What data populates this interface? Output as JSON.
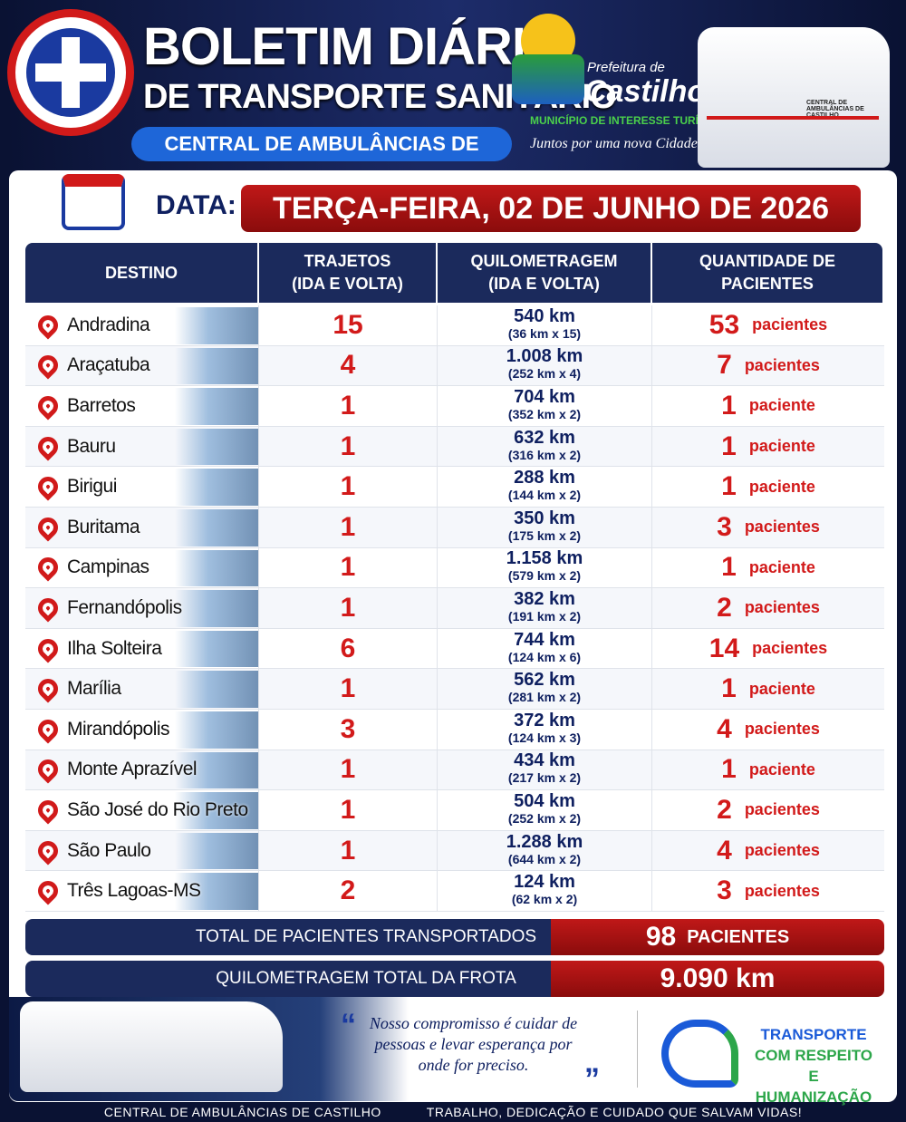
{
  "header": {
    "title": "BOLETIM DIÁRIO",
    "subtitle": "DE TRANSPORTE SANITÁRIO",
    "badge": "CENTRAL DE AMBULÂNCIAS DE CASTILHO"
  },
  "logo": {
    "prefix": "Prefeitura de",
    "name": "Castilho",
    "motto": "MUNICÍPIO DE INTERESSE TURÍSTICO",
    "slogan": "Juntos por uma nova Cidade."
  },
  "van_label": "CENTRAL DE AMBULÂNCIAS DE CASTILHO",
  "date": {
    "label": "DATA:",
    "value": "TERÇA-FEIRA, 02 DE JUNHO DE 2026"
  },
  "table": {
    "headers": [
      [
        "DESTINO"
      ],
      [
        "TRAJETOS",
        "(IDA E VOLTA)"
      ],
      [
        "QUILOMETRAGEM",
        "(IDA E VOLTA)"
      ],
      [
        "QUANTIDADE DE",
        "PACIENTES"
      ]
    ],
    "rows": [
      [
        "Andradina",
        15,
        "540 km",
        "(36 km x 15)",
        53,
        "pacientes"
      ],
      [
        "Araçatuba",
        4,
        "1.008 km",
        "(252 km x 4)",
        7,
        "pacientes"
      ],
      [
        "Barretos",
        1,
        "704 km",
        "(352 km x 2)",
        1,
        "paciente"
      ],
      [
        "Bauru",
        1,
        "632 km",
        "(316 km x 2)",
        1,
        "paciente"
      ],
      [
        "Birigui",
        1,
        "288 km",
        "(144 km x 2)",
        1,
        "paciente"
      ],
      [
        "Buritama",
        1,
        "350 km",
        "(175 km x 2)",
        3,
        "pacientes"
      ],
      [
        "Campinas",
        1,
        "1.158 km",
        "(579 km x 2)",
        1,
        "paciente"
      ],
      [
        "Fernandópolis",
        1,
        "382 km",
        "(191 km x 2)",
        2,
        "pacientes"
      ],
      [
        "Ilha Solteira",
        6,
        "744 km",
        "(124 km x 6)",
        14,
        "pacientes"
      ],
      [
        "Marília",
        1,
        "562 km",
        "(281 km x 2)",
        1,
        "paciente"
      ],
      [
        "Mirandópolis",
        3,
        "372 km",
        "(124 km x 3)",
        4,
        "pacientes"
      ],
      [
        "Monte Aprazível",
        1,
        "434 km",
        "(217 km x 2)",
        1,
        "paciente"
      ],
      [
        "São José do Rio Preto",
        1,
        "504 km",
        "(252 km x 2)",
        2,
        "pacientes"
      ],
      [
        "São Paulo",
        1,
        "1.288 km",
        "(644 km x 2)",
        4,
        "pacientes"
      ],
      [
        "Três Lagoas-MS",
        2,
        "124 km",
        "(62 km x 2)",
        3,
        "pacientes"
      ]
    ]
  },
  "totals": [
    {
      "label": "TOTAL DE PACIENTES TRANSPORTADOS",
      "value": 98,
      "unit": "PACIENTES"
    },
    {
      "label": "QUILOMETRAGEM TOTAL DA FROTA",
      "value": "9.090 km"
    }
  ],
  "quote": {
    "open": "“",
    "text": "Nosso compromisso é cuidar de pessoas e levar esperança por onde for preciso.",
    "close": "”"
  },
  "tagline": [
    "TRANSPORTE",
    "COM RESPEITO",
    "E HUMANIZAÇÃO"
  ],
  "footer": [
    "CENTRAL DE AMBULÂNCIAS DE CASTILHO",
    "TRABALHO, DEDICAÇÃO E CUIDADO QUE SALVAM VIDAS!"
  ]
}
